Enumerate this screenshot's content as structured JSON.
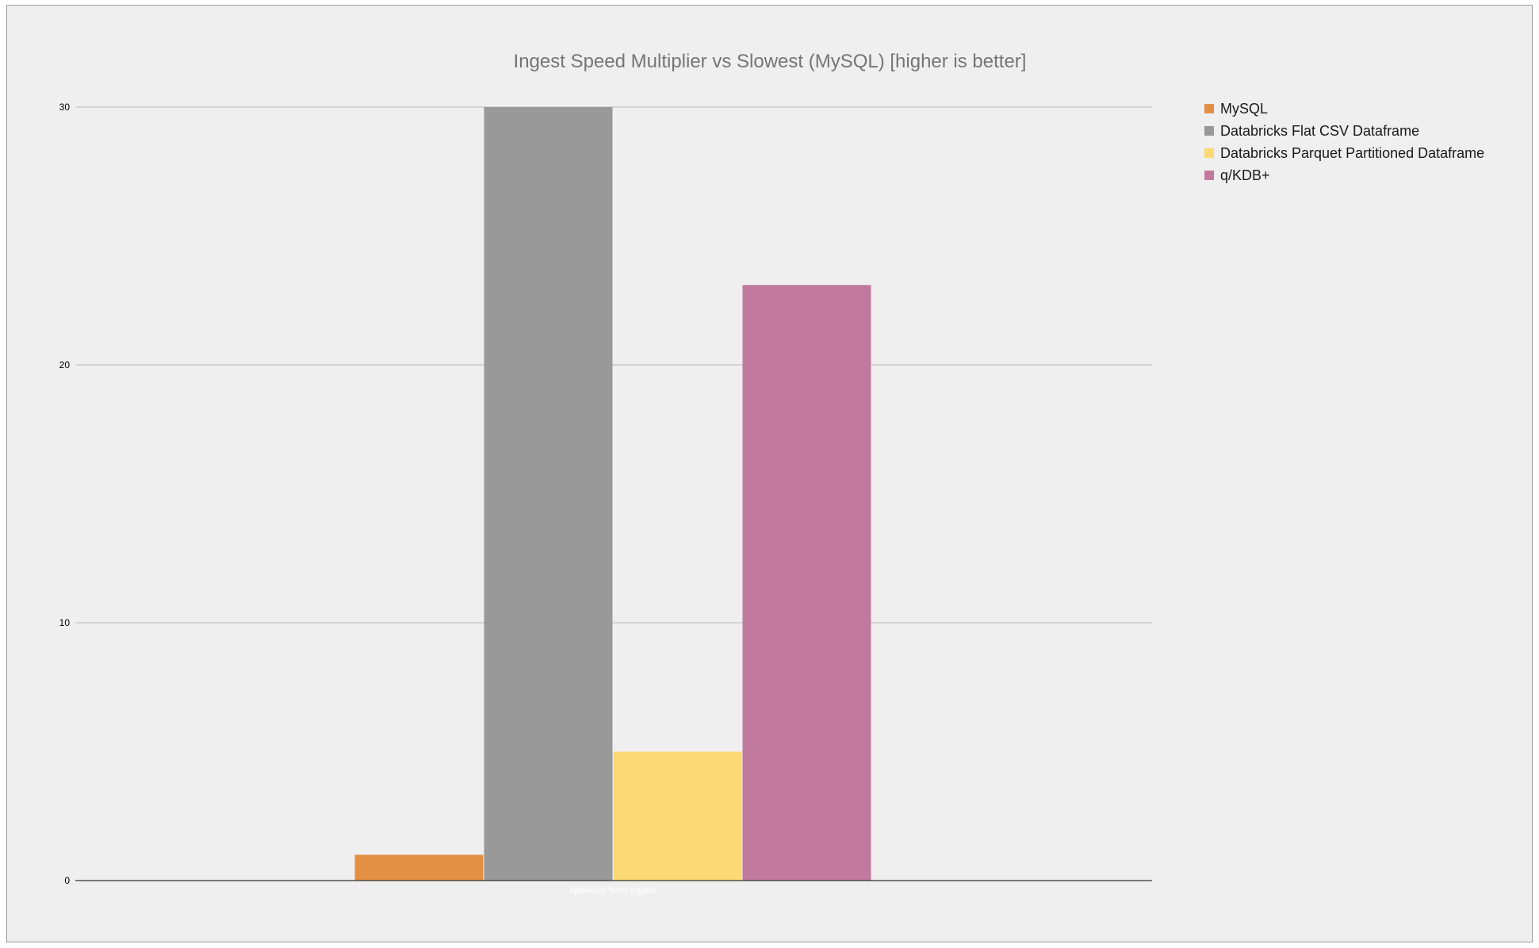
{
  "chart_data": {
    "type": "bar",
    "title": "Ingest Speed Multiplier vs Slowest (MySQL) [higher is better]",
    "categories": [
      "speedup from ingest"
    ],
    "series": [
      {
        "name": "MySQL",
        "values": [
          1
        ],
        "color": "#e49044"
      },
      {
        "name": "Databricks Flat CSV Dataframe",
        "values": [
          30
        ],
        "color": "#999999"
      },
      {
        "name": "Databricks Parquet Partitioned Dataframe",
        "values": [
          5
        ],
        "color": "#fbd975"
      },
      {
        "name": "q/KDB+",
        "values": [
          23.1
        ],
        "color": "#c17a9e"
      }
    ],
    "xlabel": "",
    "ylabel": "",
    "ylim": [
      0,
      30
    ],
    "yticks": [
      0,
      10,
      20,
      30
    ],
    "grid": true,
    "legend": "right"
  }
}
